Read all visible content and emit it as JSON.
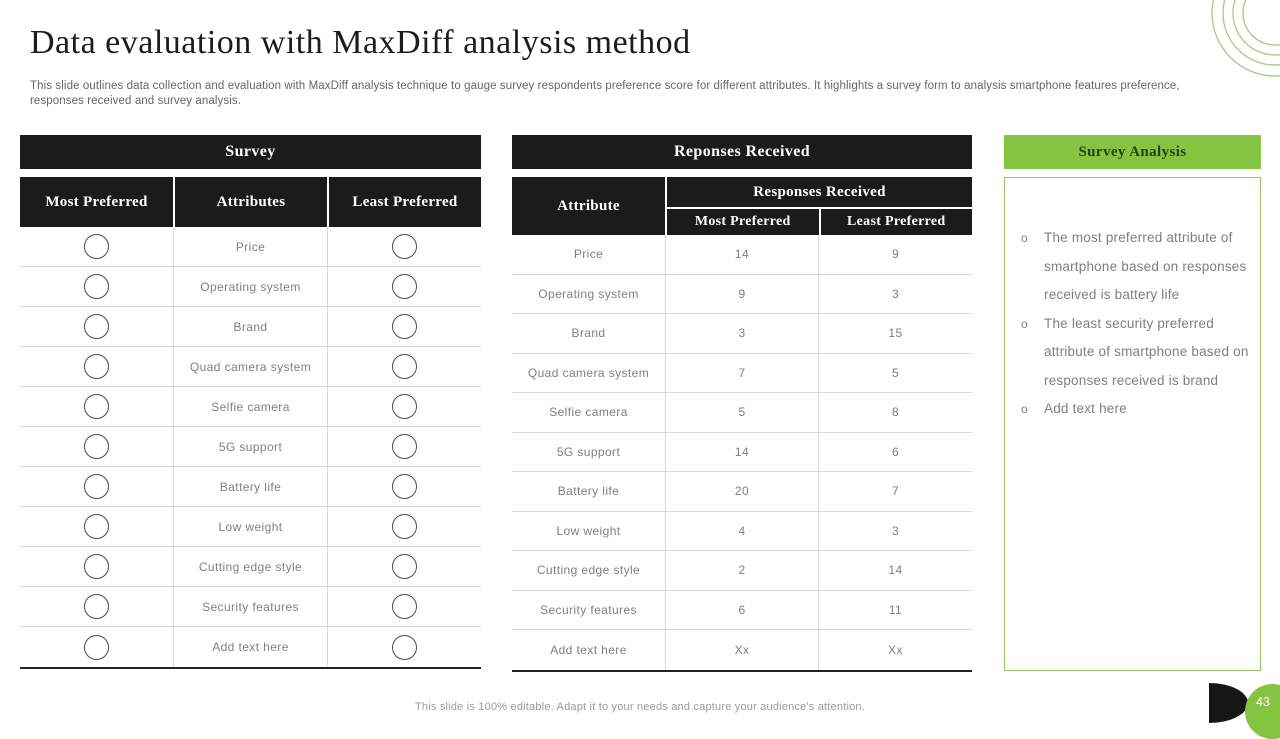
{
  "slide": {
    "title": "Data evaluation with MaxDiff analysis method",
    "subtitle": "This slide outlines data collection and evaluation with MaxDiff analysis technique to gauge survey respondents preference score for different attributes. It highlights a survey form to analysis smartphone features preference, responses received and survey analysis.",
    "footer": "This slide is 100% editable. Adapt it to your needs and capture your audience's attention.",
    "page_number": "43",
    "colors": {
      "accent_green": "#84c441",
      "box_border_green": "#97c46a",
      "arc_green": "#a9cf85",
      "bar_black": "#1b1b1b",
      "body_text_gray": "#7f7f7f"
    }
  },
  "survey_table": {
    "title": "Survey",
    "columns": [
      "Most Preferred",
      "Attributes",
      "Least Preferred"
    ],
    "rows": [
      "Price",
      "Operating system",
      "Brand",
      "Quad camera system",
      "Selfie camera",
      "5G support",
      "Battery life",
      "Low weight",
      "Cutting edge style",
      "Security features",
      "Add text here"
    ]
  },
  "responses_table": {
    "title": "Reponses Received",
    "attribute_header": "Attribute",
    "group_header": "Responses Received",
    "sub_headers": [
      "Most Preferred",
      "Least Preferred"
    ],
    "rows": [
      {
        "attribute": "Price",
        "most": "14",
        "least": "9"
      },
      {
        "attribute": "Operating system",
        "most": "9",
        "least": "3"
      },
      {
        "attribute": "Brand",
        "most": "3",
        "least": "15"
      },
      {
        "attribute": "Quad camera system",
        "most": "7",
        "least": "5"
      },
      {
        "attribute": "Selfie camera",
        "most": "5",
        "least": "8"
      },
      {
        "attribute": "5G support",
        "most": "14",
        "least": "6"
      },
      {
        "attribute": "Battery life",
        "most": "20",
        "least": "7"
      },
      {
        "attribute": "Low weight",
        "most": "4",
        "least": "3"
      },
      {
        "attribute": "Cutting edge style",
        "most": "2",
        "least": "14"
      },
      {
        "attribute": "Security features",
        "most": "6",
        "least": "11"
      },
      {
        "attribute": "Add text here",
        "most": "Xx",
        "least": "Xx"
      }
    ]
  },
  "analysis": {
    "title": "Survey Analysis",
    "bullets": [
      "The most preferred attribute of smartphone based on responses received is battery life",
      "The least security preferred attribute of smartphone based on responses received is brand",
      "Add text here"
    ]
  }
}
